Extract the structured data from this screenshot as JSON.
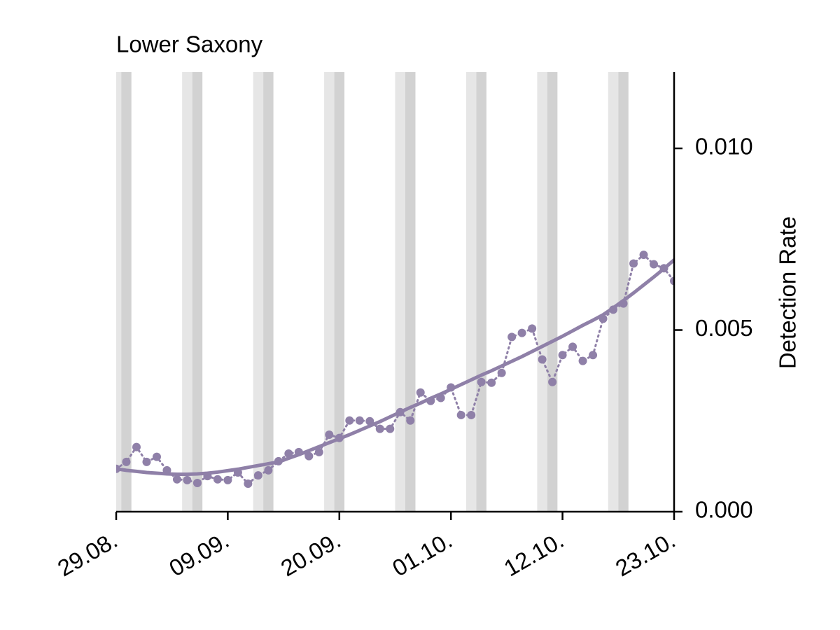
{
  "chart_data": {
    "type": "line",
    "title": "Lower Saxony",
    "y_label": "Detection Rate",
    "y_axis_side": "right",
    "x": [
      "29.08.",
      "30.08.",
      "31.08.",
      "01.09.",
      "02.09.",
      "03.09.",
      "04.09.",
      "05.09.",
      "06.09.",
      "07.09.",
      "08.09.",
      "09.09.",
      "10.09.",
      "11.09.",
      "12.09.",
      "13.09.",
      "14.09.",
      "15.09.",
      "16.09.",
      "17.09.",
      "18.09.",
      "19.09.",
      "20.09.",
      "21.09.",
      "22.09.",
      "23.09.",
      "24.09.",
      "25.09.",
      "26.09.",
      "27.09.",
      "28.09.",
      "29.09.",
      "30.09.",
      "01.10.",
      "02.10.",
      "03.10.",
      "04.10.",
      "05.10.",
      "06.10.",
      "07.10.",
      "08.10.",
      "09.10.",
      "10.10.",
      "11.10.",
      "12.10.",
      "13.10.",
      "14.10.",
      "15.10.",
      "16.10.",
      "17.10.",
      "18.10.",
      "19.10.",
      "20.10.",
      "21.10.",
      "22.10.",
      "23.10."
    ],
    "xticks": [
      "29.08.",
      "09.09.",
      "20.09.",
      "01.10.",
      "12.10.",
      "23.10."
    ],
    "ylim": [
      0,
      0.0121
    ],
    "yticks": [
      {
        "value": 0,
        "label": "0.000"
      },
      0.005,
      {
        "value": 0.01,
        "label": "0.010"
      }
    ],
    "series": [
      {
        "color": "#8f80a8",
        "line_style": "dotted",
        "markers": true,
        "values": [
          0.00118,
          0.00137,
          0.00178,
          0.00137,
          0.00151,
          0.00114,
          0.00089,
          0.00087,
          0.00079,
          0.00098,
          0.00089,
          0.00087,
          0.00108,
          0.00077,
          0.001,
          0.00114,
          0.00139,
          0.0016,
          0.00164,
          0.00153,
          0.00164,
          0.00212,
          0.00203,
          0.00251,
          0.00251,
          0.00249,
          0.00228,
          0.00228,
          0.00274,
          0.00251,
          0.00328,
          0.00305,
          0.00313,
          0.00342,
          0.00266,
          0.00266,
          0.00357,
          0.00355,
          0.00382,
          0.00481,
          0.00492,
          0.00504,
          0.00419,
          0.00357,
          0.00431,
          0.00454,
          0.00415,
          0.00431,
          0.00531,
          0.00556,
          0.00573,
          0.00683,
          0.00707,
          0.00681,
          0.0067,
          0.00635
        ]
      },
      {
        "color": "#8f80a8",
        "line_style": "solid",
        "markers": false,
        "values": [
          0.00118,
          0.00114,
          0.00111,
          0.00108,
          0.00106,
          0.00104,
          0.00103,
          0.00103,
          0.00104,
          0.00106,
          0.00109,
          0.00113,
          0.00117,
          0.00122,
          0.00127,
          0.00132,
          0.00137,
          0.00147,
          0.00157,
          0.00168,
          0.00179,
          0.0019,
          0.00201,
          0.00212,
          0.00224,
          0.00236,
          0.00248,
          0.00261,
          0.00274,
          0.00287,
          0.00299,
          0.00312,
          0.00324,
          0.00337,
          0.0035,
          0.00363,
          0.00376,
          0.00388,
          0.00401,
          0.00414,
          0.00427,
          0.00441,
          0.00455,
          0.00469,
          0.00483,
          0.00498,
          0.00513,
          0.00527,
          0.00542,
          0.00561,
          0.00581,
          0.00602,
          0.00624,
          0.00646,
          0.00669,
          0.00693
        ]
      }
    ]
  }
}
